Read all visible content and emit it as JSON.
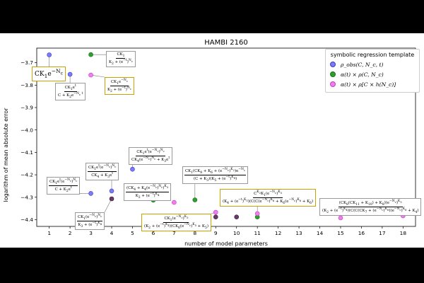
{
  "chart_data": {
    "type": "scatter",
    "title": "HAMBI 2160",
    "xlabel": "number of model parameters",
    "ylabel": "logarithm of mean absolute error",
    "xlim": [
      0.4,
      18.6
    ],
    "ylim": [
      -4.43,
      -3.635
    ],
    "xticks": [
      1,
      2,
      3,
      4,
      5,
      6,
      7,
      8,
      9,
      10,
      11,
      12,
      13,
      14,
      15,
      16,
      17,
      18
    ],
    "yticks": [
      -3.7,
      -3.8,
      -3.9,
      -4.0,
      -4.1,
      -4.2,
      -4.3,
      -4.4
    ],
    "ytick_labels": [
      "−3.7",
      "−3.8",
      "−3.9",
      "−4.0",
      "−4.1",
      "−4.2",
      "−4.3",
      "−4.4"
    ],
    "grid": false,
    "legend_title": "symbolic regression template",
    "legend_placement": "top-right",
    "series": [
      {
        "name": "ρobs(C, Nc, t)",
        "legend_text": "ρ_obs(C, N_c, t)",
        "color": "#7b7bf5",
        "edge": "#3a3ad0",
        "points": [
          [
            1,
            -3.665
          ],
          [
            2,
            -3.752
          ],
          [
            3,
            -4.283
          ],
          [
            4,
            -4.272
          ],
          [
            5,
            -4.175
          ]
        ]
      },
      {
        "name": "α(t) × ρ(C, Nc)",
        "legend_text": "α(t) × ρ(C, N_c)",
        "color": "#2ca02c",
        "edge": "#1a6e1a",
        "points": [
          [
            3,
            -3.664
          ],
          [
            6,
            -4.313
          ],
          [
            8,
            -4.312
          ],
          [
            11,
            -4.388
          ]
        ]
      },
      {
        "name": "α(t) × ρ[C × h(Nc)]",
        "legend_text": "α(t) × ρ[C × h(N_c)]",
        "color": "#f07cf0",
        "edge": "#c040c0",
        "points": [
          [
            3,
            -3.755
          ],
          [
            7,
            -4.323
          ],
          [
            9,
            -4.367
          ],
          [
            11,
            -4.373
          ],
          [
            15,
            -4.392
          ],
          [
            18,
            -4.383
          ]
        ]
      },
      {
        "name": "highlight",
        "color": "#6a3a6a",
        "edge": "#3a1a3a",
        "points": [
          [
            4,
            -4.307
          ],
          [
            9,
            -4.388
          ],
          [
            10,
            -4.388
          ]
        ]
      }
    ],
    "annotations": [
      {
        "id": "a1",
        "x": 1,
        "y": -3.665,
        "highlight": true,
        "big": true,
        "text": "CK1e^{-Nc}"
      },
      {
        "id": "a2",
        "x": 2,
        "y": -3.752,
        "highlight": false,
        "num": "CK1e^t",
        "den": "C + K2e^{-Nc t}"
      },
      {
        "id": "a3",
        "x": 3,
        "y": -3.664,
        "highlight": false,
        "num": "CK1",
        "den": "K2 + (e^{-t})^{Nc}"
      },
      {
        "id": "a4",
        "x": 3,
        "y": -3.755,
        "highlight": true,
        "num": "CK1e^{-Nc}",
        "den": "K2 + (e^{-t})^{Nc}"
      },
      {
        "id": "a5",
        "x": 3,
        "y": -4.283,
        "highlight": false,
        "num": "CK1e^t(e^{-Nc})^{Nc}",
        "den": "C + K2e^t"
      },
      {
        "id": "a6",
        "x": 4,
        "y": -4.272,
        "highlight": false,
        "num": "CK1e^t(e^{-Nc})^{Nc}",
        "den": "CK4 + K3e^t"
      },
      {
        "id": "a7",
        "x": 4,
        "y": -4.307,
        "highlight": false,
        "num": "CK1(e^{-Nc})^{Nc}",
        "den": "K3 + (e^{-t})^{K4}"
      },
      {
        "id": "a8",
        "x": 5,
        "y": -4.175,
        "highlight": false,
        "num": "CK1e^t(e^{-Nc})^{Nc}",
        "den": "CK4(e^{-Nc})^{Nc} + K3e^t"
      },
      {
        "id": "a9",
        "x": 6,
        "y": -4.313,
        "highlight": false,
        "num": "(CK4 + K4(e^{-Nc})^{Nc})^{K3}",
        "den": "K2 + (e^{-t})^{K4}"
      },
      {
        "id": "a10",
        "x": 8,
        "y": -4.312,
        "highlight": false,
        "num": "CK1(CK8 + K6 + (e^{-Nc})^{K2})e^{-Nc}",
        "den": "(C + K3)(K5 + (e^{-t})^{K4})"
      },
      {
        "id": "a11",
        "x": 9,
        "y": -4.367,
        "highlight": true,
        "num": "CK1(e^{-Nc})^{K3}",
        "den": "(K2 + (e^{-t})^{K4})(CK6(e^{-Nc})^{K5} + K5)"
      },
      {
        "id": "a12",
        "x": 11,
        "y": -4.373,
        "highlight": true,
        "num": "C^{K2}K1(e^{-Nc})^{K3}",
        "den": "(K4 + (e^{-t})^{K5})(C(C(e^{-Nc})^{K6} + K6(e^{-Nc})^{K6} + K6)"
      },
      {
        "id": "a13",
        "x": 15,
        "y": -4.392,
        "highlight": false,
        "num": "(CK8(CK11 + K10) + K8)(e^{-Nc})^{K3}",
        "den": "(K2 + (e^{-t})^{K4})(C(C(CK7 + (e^{-Nc})^{K6})(e^{-Nc})^{K6} + K4)"
      }
    ]
  }
}
